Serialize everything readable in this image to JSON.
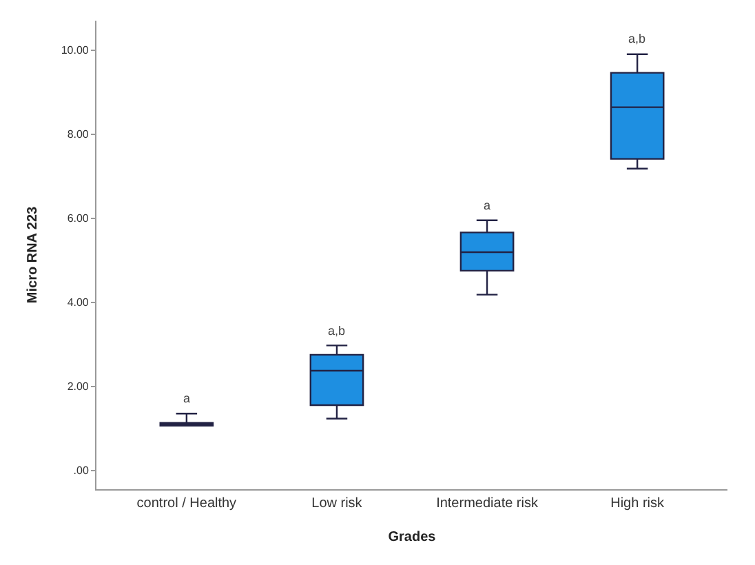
{
  "chart_data": {
    "type": "box",
    "xlabel": "Grades",
    "ylabel": "Micro RNA 223",
    "categories": [
      "control / Healthy",
      "Low risk",
      "Intermediate risk",
      "High risk"
    ],
    "color": "#1e8fe1",
    "boxes": [
      {
        "low": 1.06,
        "q1": 1.06,
        "median": 1.1,
        "q3": 1.13,
        "high": 1.35
      },
      {
        "low": 1.23,
        "q1": 1.55,
        "median": 2.37,
        "q3": 2.75,
        "high": 2.97
      },
      {
        "low": 4.18,
        "q1": 4.75,
        "median": 5.19,
        "q3": 5.66,
        "high": 5.95
      },
      {
        "low": 7.18,
        "q1": 7.41,
        "median": 8.64,
        "q3": 9.46,
        "high": 9.9
      }
    ],
    "ylim": [
      -0.45,
      10.7
    ],
    "yticks": [
      {
        "value": 0,
        "label": ".00"
      },
      {
        "value": 2,
        "label": "2.00"
      },
      {
        "value": 4,
        "label": "4.00"
      },
      {
        "value": 6,
        "label": "6.00"
      },
      {
        "value": 8,
        "label": "8.00"
      },
      {
        "value": 10,
        "label": "10.00"
      }
    ],
    "annotations": [
      "a",
      "a,b",
      "a",
      "a,b"
    ]
  }
}
